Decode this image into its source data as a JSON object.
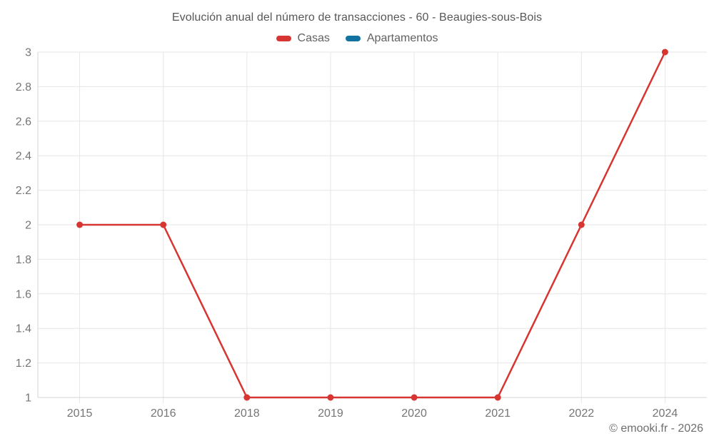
{
  "title": "Evolución anual del número de transacciones - 60 - Beaugies-sous-Bois",
  "legend": {
    "items": [
      {
        "id": "casas",
        "label": "Casas",
        "color": "#d63531"
      },
      {
        "id": "apartamentos",
        "label": "Apartamentos",
        "color": "#1272a2"
      }
    ]
  },
  "footer": {
    "credit": "© emooki.fr - 2026"
  },
  "colors": {
    "series_casas": "#d63531",
    "series_apartamentos": "#1272a2",
    "gridline": "#e6e6e6",
    "axis_line": "#d4d4d4",
    "tick_label": "#757575",
    "title_text": "#575757",
    "background": "#ffffff"
  },
  "chart_data": {
    "type": "line",
    "title": "Evolución anual del número de transacciones - 60 - Beaugies-sous-Bois",
    "categories": [
      "2015",
      "2016",
      "2018",
      "2019",
      "2020",
      "2021",
      "2022",
      "2024"
    ],
    "series": [
      {
        "name": "Casas",
        "color": "#d63531",
        "values": [
          2,
          2,
          1,
          1,
          1,
          1,
          2,
          3
        ]
      },
      {
        "name": "Apartamentos",
        "color": "#1272a2",
        "values": []
      }
    ],
    "xlabel": "",
    "ylabel": "",
    "ylim": [
      1,
      3
    ],
    "yticks": [
      1,
      1.2,
      1.4,
      1.6,
      1.8,
      2,
      2.2,
      2.4,
      2.6,
      2.8,
      3
    ],
    "ytick_labels": [
      "1",
      "1.2",
      "1.4",
      "1.6",
      "1.8",
      "2",
      "2.2",
      "2.4",
      "2.6",
      "2.8",
      "3"
    ],
    "grid": true,
    "legend_position": "top",
    "marker": "circle"
  }
}
